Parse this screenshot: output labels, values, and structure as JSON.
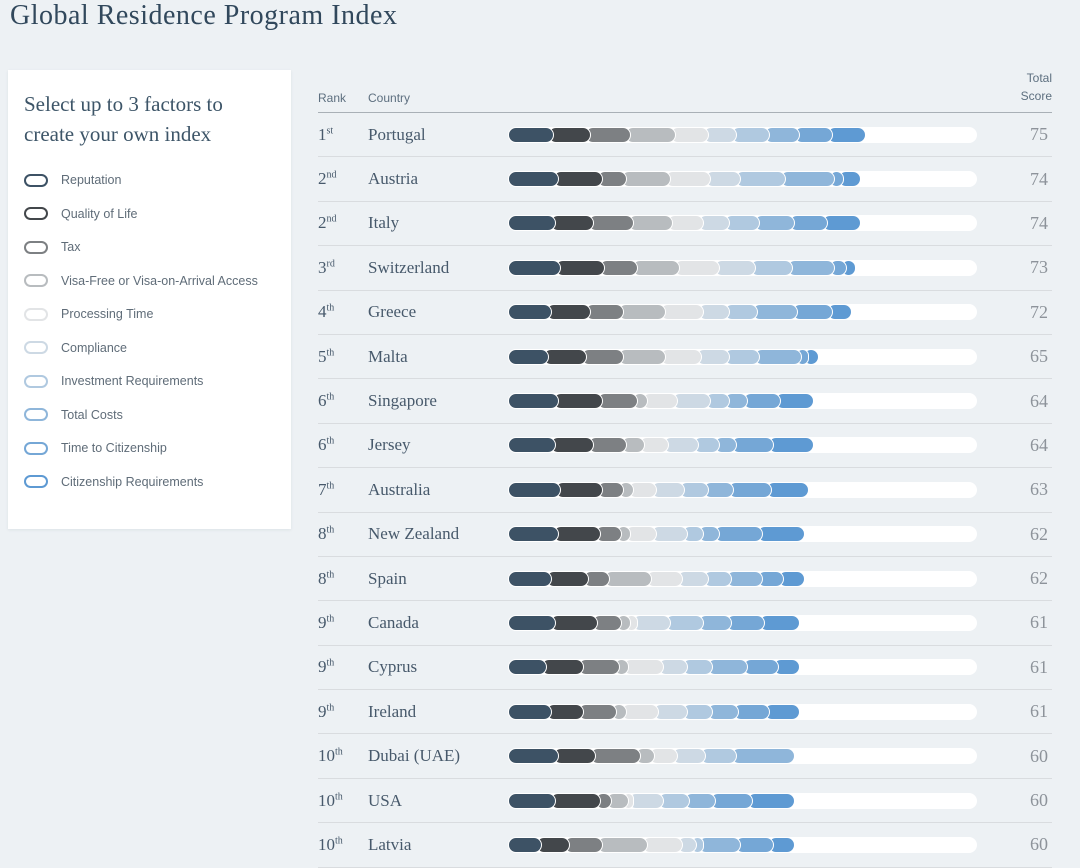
{
  "title": "Global Residence Program Index",
  "colors": {
    "page_bg": "#edf1f4",
    "panel_bg": "#ffffff",
    "title_text": "#31485c",
    "row_text": "#47596b",
    "score_text": "#8d939a",
    "header_text": "#5d6f7f",
    "header_divider": "#a9b0b6",
    "row_divider": "#d9dcdf",
    "bar_track": "#ffffff",
    "factor_colors": [
      "#3d5265",
      "#43474b",
      "#7d8083",
      "#b8bcbf",
      "#e2e4e6",
      "#cdd9e4",
      "#b0c9e0",
      "#8fb6da",
      "#75a7d6",
      "#5e9ad3"
    ]
  },
  "sidebar": {
    "heading": "Select up to 3 factors to create your own index",
    "factors": [
      {
        "label": "Reputation",
        "color": "#3d5265"
      },
      {
        "label": "Quality of Life",
        "color": "#43474b"
      },
      {
        "label": "Tax",
        "color": "#7d8083"
      },
      {
        "label": "Visa-Free or Visa-on-Arrival Access",
        "color": "#b8bcbf"
      },
      {
        "label": "Processing Time",
        "color": "#e2e4e6"
      },
      {
        "label": "Compliance",
        "color": "#cdd9e4"
      },
      {
        "label": "Investment Requirements",
        "color": "#b0c9e0"
      },
      {
        "label": "Total Costs",
        "color": "#8fb6da"
      },
      {
        "label": "Time to Citizenship",
        "color": "#75a7d6"
      },
      {
        "label": "Citizenship Requirements",
        "color": "#5e9ad3"
      }
    ]
  },
  "table": {
    "headers": {
      "rank": "Rank",
      "country": "Country",
      "total_score": "Total Score"
    },
    "rows": [
      {
        "rank": "1",
        "ordinal": "st",
        "country": "Portugal",
        "score": "75",
        "segments": [
          8.5,
          8,
          8.5,
          9.5,
          7,
          6,
          7,
          6.5,
          7,
          7
        ]
      },
      {
        "rank": "2",
        "ordinal": "nd",
        "country": "Austria",
        "score": "74",
        "segments": [
          9.5,
          9.5,
          5,
          9.5,
          8.5,
          6.5,
          9.5,
          10.5,
          1.8,
          3.7
        ]
      },
      {
        "rank": "2",
        "ordinal": "nd",
        "country": "Italy",
        "score": "74",
        "segments": [
          9,
          8,
          8.5,
          8.5,
          6.5,
          5.5,
          6.5,
          7.5,
          7,
          7
        ]
      },
      {
        "rank": "3",
        "ordinal": "rd",
        "country": "Switzerland",
        "score": "73",
        "segments": [
          10,
          9.5,
          7,
          9,
          8.5,
          7.5,
          8,
          9,
          2.5,
          2
        ]
      },
      {
        "rank": "4",
        "ordinal": "th",
        "country": "Greece",
        "score": "72",
        "segments": [
          8,
          8.5,
          7,
          9,
          8,
          5.5,
          6,
          8.5,
          7.5,
          4
        ]
      },
      {
        "rank": "5",
        "ordinal": "th",
        "country": "Malta",
        "score": "65",
        "segments": [
          7.5,
          8,
          8,
          9,
          7.5,
          6,
          6.5,
          9,
          1.5,
          2
        ]
      },
      {
        "rank": "6",
        "ordinal": "th",
        "country": "Singapore",
        "score": "64",
        "segments": [
          9.5,
          9.5,
          7.5,
          2,
          6.5,
          7,
          4,
          4,
          7,
          7
        ]
      },
      {
        "rank": "6",
        "ordinal": "th",
        "country": "Jersey",
        "score": "64",
        "segments": [
          9,
          8,
          7,
          4,
          5,
          6.5,
          4.5,
          3.5,
          8,
          8.5
        ]
      },
      {
        "rank": "7",
        "ordinal": "th",
        "country": "Australia",
        "score": "63",
        "segments": [
          10,
          9,
          4.5,
          2,
          5,
          6,
          5,
          5.5,
          8,
          8
        ]
      },
      {
        "rank": "8",
        "ordinal": "th",
        "country": "New Zealand",
        "score": "62",
        "segments": [
          9.5,
          9,
          4.5,
          2,
          5.5,
          6.5,
          3.5,
          3.5,
          9,
          9
        ]
      },
      {
        "rank": "8",
        "ordinal": "th",
        "country": "Spain",
        "score": "62",
        "segments": [
          8,
          8,
          4.5,
          9,
          6.5,
          5.5,
          5,
          6.5,
          4.5,
          4.5
        ]
      },
      {
        "rank": "9",
        "ordinal": "th",
        "country": "Canada",
        "score": "61",
        "segments": [
          9,
          9,
          5,
          2,
          1.5,
          7,
          7,
          6,
          7,
          7.5
        ]
      },
      {
        "rank": "9",
        "ordinal": "th",
        "country": "Cyprus",
        "score": "61",
        "segments": [
          7,
          8,
          7.5,
          2,
          7.5,
          5,
          5.5,
          7.5,
          6.5,
          4.5
        ]
      },
      {
        "rank": "9",
        "ordinal": "th",
        "country": "Ireland",
        "score": "61",
        "segments": [
          8,
          7,
          7,
          2,
          7,
          6,
          5.5,
          5.5,
          6.5,
          6.5
        ]
      },
      {
        "rank": "10",
        "ordinal": "th",
        "country": "Dubai (UAE)",
        "score": "60",
        "segments": [
          9.5,
          8,
          9.5,
          3,
          5,
          6,
          6.5,
          12.5,
          0,
          0
        ]
      },
      {
        "rank": "10",
        "ordinal": "th",
        "country": "USA",
        "score": "60",
        "segments": [
          9,
          9.5,
          2.5,
          3.5,
          1,
          6.5,
          5.5,
          5.5,
          8,
          9
        ]
      },
      {
        "rank": "10",
        "ordinal": "th",
        "country": "Latvia",
        "score": "60",
        "segments": [
          6,
          6,
          7,
          9.5,
          7.5,
          3,
          1.5,
          8,
          7,
          4.5
        ]
      }
    ]
  }
}
